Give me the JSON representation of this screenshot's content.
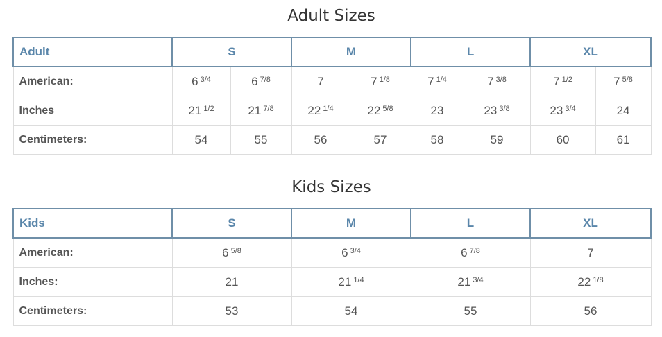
{
  "adult": {
    "title": "Adult Sizes",
    "corner": "Adult",
    "sizes": [
      "S",
      "M",
      "L",
      "XL"
    ],
    "rows": [
      {
        "label": "American:",
        "cells": [
          {
            "whole": "6",
            "frac": "3/4"
          },
          {
            "whole": "6",
            "frac": "7/8"
          },
          {
            "whole": "7",
            "frac": ""
          },
          {
            "whole": "7",
            "frac": "1/8"
          },
          {
            "whole": "7",
            "frac": "1/4"
          },
          {
            "whole": "7",
            "frac": "3/8"
          },
          {
            "whole": "7",
            "frac": "1/2"
          },
          {
            "whole": "7",
            "frac": "5/8"
          }
        ]
      },
      {
        "label": "Inches",
        "cells": [
          {
            "whole": "21",
            "frac": "1/2"
          },
          {
            "whole": "21",
            "frac": "7/8"
          },
          {
            "whole": "22",
            "frac": "1/4"
          },
          {
            "whole": "22",
            "frac": "5/8"
          },
          {
            "whole": "23",
            "frac": ""
          },
          {
            "whole": "23",
            "frac": "3/8"
          },
          {
            "whole": "23",
            "frac": "3/4"
          },
          {
            "whole": "24",
            "frac": ""
          }
        ]
      },
      {
        "label": "Centimeters:",
        "cells": [
          {
            "whole": "54",
            "frac": ""
          },
          {
            "whole": "55",
            "frac": ""
          },
          {
            "whole": "56",
            "frac": ""
          },
          {
            "whole": "57",
            "frac": ""
          },
          {
            "whole": "58",
            "frac": ""
          },
          {
            "whole": "59",
            "frac": ""
          },
          {
            "whole": "60",
            "frac": ""
          },
          {
            "whole": "61",
            "frac": ""
          }
        ]
      }
    ]
  },
  "kids": {
    "title": "Kids Sizes",
    "corner": "Kids",
    "sizes": [
      "S",
      "M",
      "L",
      "XL"
    ],
    "rows": [
      {
        "label": "American:",
        "cells": [
          {
            "whole": "6",
            "frac": "5/8"
          },
          {
            "whole": "6",
            "frac": "3/4"
          },
          {
            "whole": "6",
            "frac": "7/8"
          },
          {
            "whole": "7",
            "frac": ""
          }
        ]
      },
      {
        "label": "Inches:",
        "cells": [
          {
            "whole": "21",
            "frac": ""
          },
          {
            "whole": "21",
            "frac": "1/4"
          },
          {
            "whole": "21",
            "frac": "3/4"
          },
          {
            "whole": "22",
            "frac": "1/8"
          }
        ]
      },
      {
        "label": "Centimeters:",
        "cells": [
          {
            "whole": "53",
            "frac": ""
          },
          {
            "whole": "54",
            "frac": ""
          },
          {
            "whole": "55",
            "frac": ""
          },
          {
            "whole": "56",
            "frac": ""
          }
        ]
      }
    ]
  },
  "colors": {
    "header_border": "#6f8fa8",
    "header_text": "#5a86aa",
    "cell_border": "#dddddd",
    "text": "#555555"
  }
}
